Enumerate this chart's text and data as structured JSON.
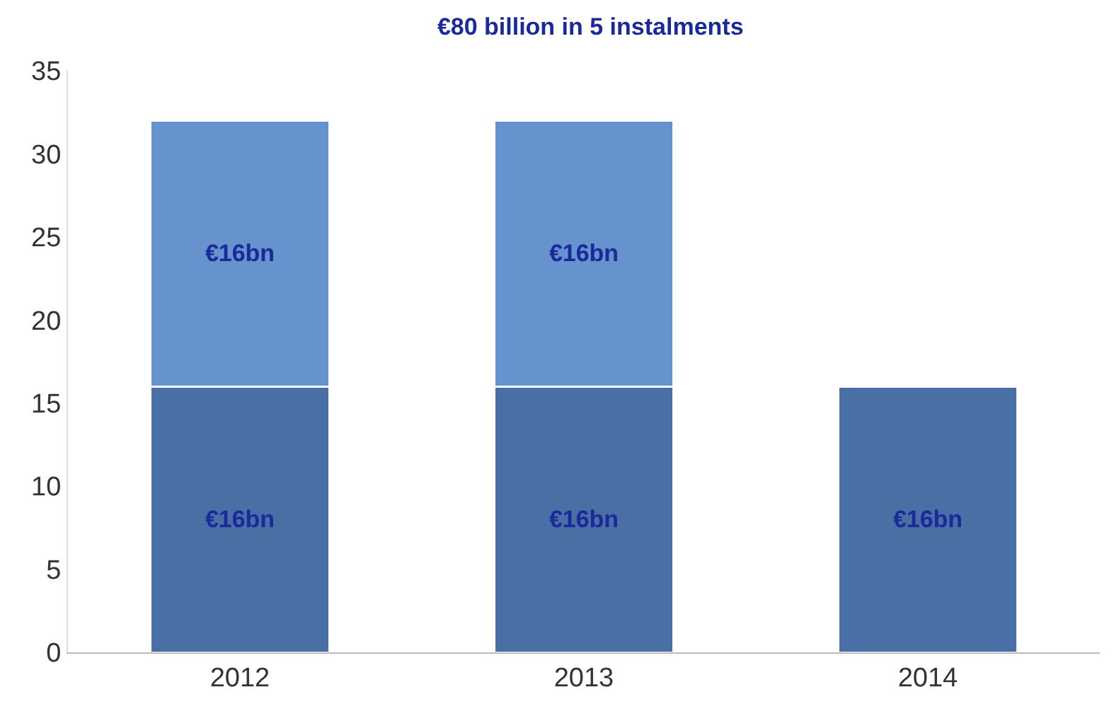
{
  "chart_data": {
    "type": "bar",
    "title": "€80 billion in 5 instalments",
    "stacked": true,
    "categories": [
      "2012",
      "2013",
      "2014"
    ],
    "series": [
      {
        "color": "#4a6fa5",
        "values": [
          16,
          16,
          16
        ],
        "value_labels": [
          "€16bn",
          "€16bn",
          "€16bn"
        ]
      },
      {
        "color": "#6693cd",
        "values": [
          16,
          16,
          null
        ],
        "value_labels": [
          "€16bn",
          "€16bn",
          null
        ]
      }
    ],
    "ylim": [
      0,
      35
    ],
    "yticks": [
      0,
      5,
      10,
      15,
      20,
      25,
      30,
      35
    ]
  }
}
